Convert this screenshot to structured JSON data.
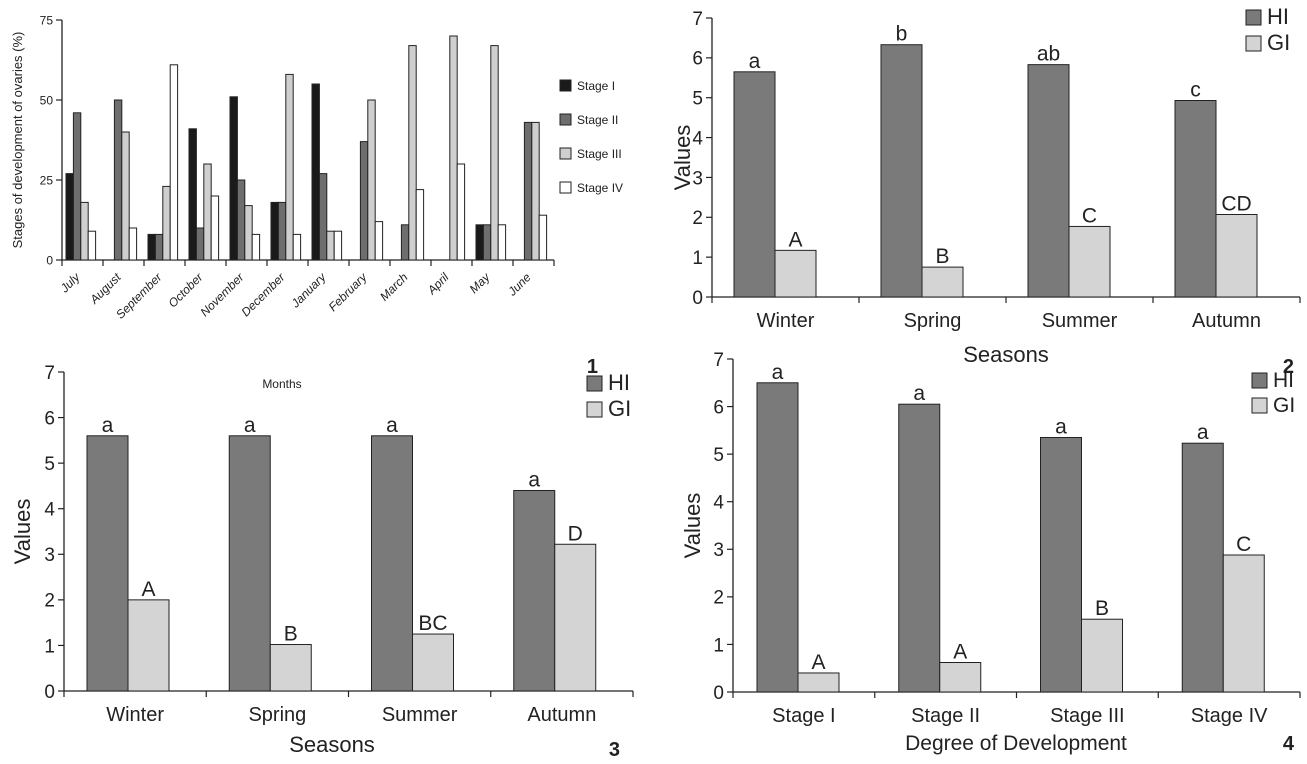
{
  "colors": {
    "dark": "#7a7a7a",
    "light": "#d4d4d4",
    "stage1": "#1a1a1a",
    "stage2": "#6e6e6e",
    "stage3": "#cfcfcf",
    "stage4": "#ffffff",
    "axis": "#222222"
  },
  "chart_data": [
    {
      "panel": "1",
      "type": "bar",
      "title": "",
      "xlabel": "Months",
      "ylabel": "Stages of development of ovaries (%)",
      "ylim": [
        0,
        75
      ],
      "yticks": [
        0,
        25,
        50,
        75
      ],
      "categories": [
        "July",
        "August",
        "September",
        "October",
        "November",
        "December",
        "January",
        "February",
        "March",
        "April",
        "May",
        "June"
      ],
      "series": [
        {
          "name": "Stage I",
          "color": "#1a1a1a",
          "values": [
            27,
            0,
            8,
            41,
            51,
            18,
            55,
            0,
            0,
            0,
            11,
            0
          ]
        },
        {
          "name": "Stage II",
          "color": "#6e6e6e",
          "values": [
            46,
            50,
            8,
            10,
            25,
            18,
            27,
            37,
            11,
            0,
            11,
            43
          ]
        },
        {
          "name": "Stage III",
          "color": "#cfcfcf",
          "values": [
            18,
            40,
            23,
            30,
            17,
            58,
            9,
            50,
            67,
            70,
            67,
            43
          ]
        },
        {
          "name": "Stage IV",
          "color": "#ffffff",
          "values": [
            9,
            10,
            61,
            20,
            8,
            8,
            9,
            12,
            22,
            30,
            11,
            14
          ]
        }
      ],
      "legend": "right",
      "panel_label": "1"
    },
    {
      "panel": "2",
      "type": "bar",
      "title": "",
      "xlabel": "Seasons",
      "ylabel": "Values",
      "ylim": [
        0,
        7
      ],
      "yticks": [
        0,
        1,
        2,
        3,
        4,
        5,
        6,
        7
      ],
      "categories": [
        "Winter",
        "Spring",
        "Summer",
        "Autumn"
      ],
      "series": [
        {
          "name": "HI",
          "color": "#7a7a7a",
          "values": [
            5.65,
            6.33,
            5.83,
            4.93
          ],
          "labels": [
            "a",
            "b",
            "ab",
            "c"
          ]
        },
        {
          "name": "GI",
          "color": "#d4d4d4",
          "values": [
            1.17,
            0.75,
            1.77,
            2.07
          ],
          "labels": [
            "A",
            "B",
            "C",
            "CD"
          ]
        }
      ],
      "legend": "top-right",
      "panel_label": "2"
    },
    {
      "panel": "3",
      "type": "bar",
      "title": "",
      "xlabel": "Seasons",
      "ylabel": "Values",
      "ylim": [
        0,
        7
      ],
      "yticks": [
        0,
        1,
        2,
        3,
        4,
        5,
        6,
        7
      ],
      "categories": [
        "Winter",
        "Spring",
        "Summer",
        "Autumn"
      ],
      "series": [
        {
          "name": "HI",
          "color": "#7a7a7a",
          "values": [
            5.6,
            5.6,
            5.6,
            4.4
          ],
          "labels": [
            "a",
            "a",
            "a",
            "a"
          ]
        },
        {
          "name": "GI",
          "color": "#d4d4d4",
          "values": [
            2.0,
            1.02,
            1.25,
            3.22
          ],
          "labels": [
            "A",
            "B",
            "BC",
            "D"
          ]
        }
      ],
      "legend": "top-right",
      "panel_label": "3"
    },
    {
      "panel": "4",
      "type": "bar",
      "title": "",
      "xlabel": "Degree of Development",
      "ylabel": "Values",
      "ylim": [
        0,
        7
      ],
      "yticks": [
        0,
        1,
        2,
        3,
        4,
        5,
        6,
        7
      ],
      "categories": [
        "Stage I",
        "Stage II",
        "Stage III",
        "Stage IV"
      ],
      "series": [
        {
          "name": "HI",
          "color": "#7a7a7a",
          "values": [
            6.5,
            6.05,
            5.35,
            5.23
          ],
          "labels": [
            "a",
            "a",
            "a",
            "a"
          ]
        },
        {
          "name": "GI",
          "color": "#d4d4d4",
          "values": [
            0.4,
            0.62,
            1.53,
            2.88
          ],
          "labels": [
            "A",
            "A",
            "B",
            "C"
          ]
        }
      ],
      "legend": "top-right",
      "panel_label": "4"
    }
  ]
}
